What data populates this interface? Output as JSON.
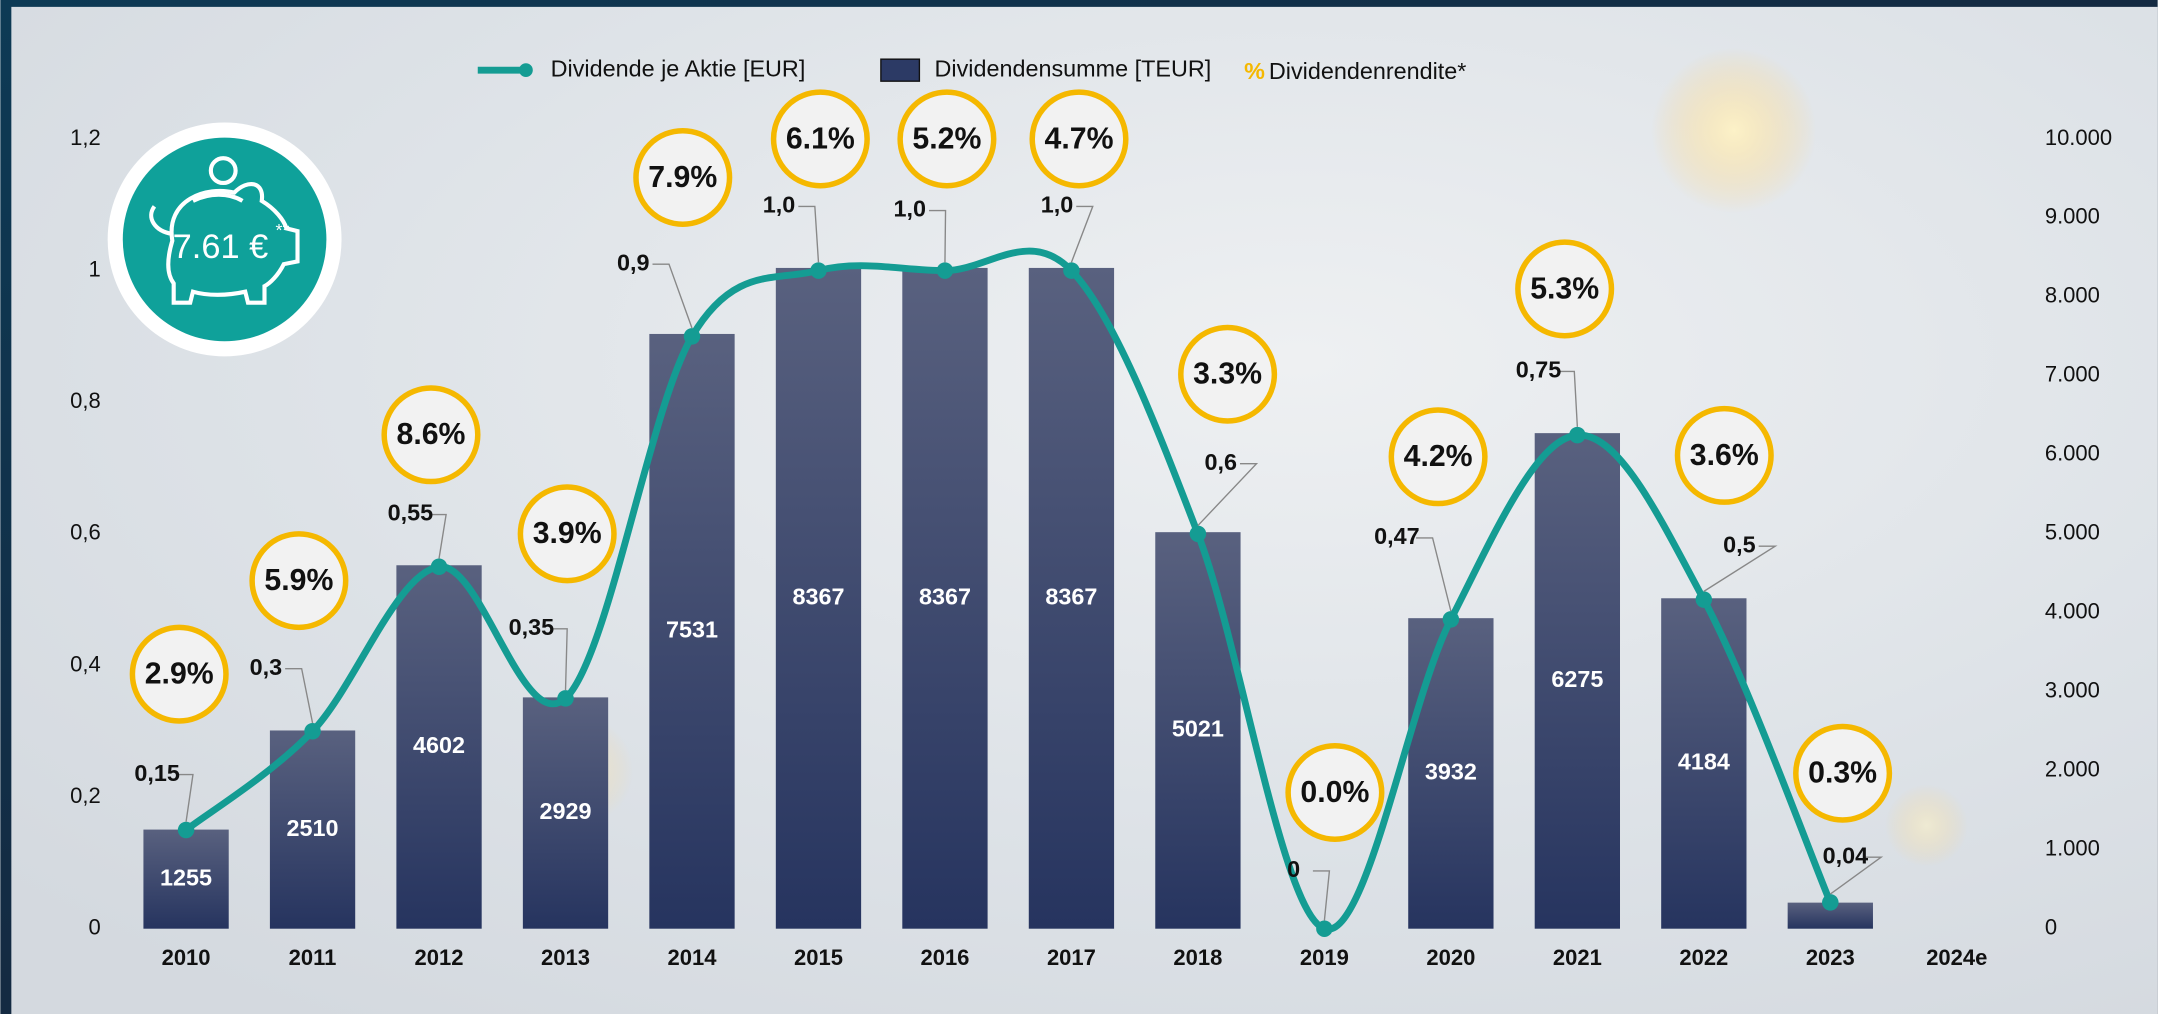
{
  "chart_data": {
    "type": "combo",
    "categories": [
      "2010",
      "2011",
      "2012",
      "2013",
      "2014",
      "2015",
      "2016",
      "2017",
      "2018",
      "2019",
      "2020",
      "2021",
      "2022",
      "2023",
      "2024e"
    ],
    "series": [
      {
        "name": "Dividende je Aktie [EUR]",
        "type": "line",
        "color": "#149c93",
        "values": [
          0.15,
          0.3,
          0.55,
          0.35,
          0.9,
          1.0,
          1.0,
          1.0,
          0.6,
          0,
          0.47,
          0.75,
          0.5,
          0.04,
          null
        ],
        "value_labels": [
          "0,15",
          "0,3",
          "0,55",
          "0,35",
          "0,9",
          "1,0",
          "1,0",
          "1,0",
          "0,6",
          "0",
          "0,47",
          "0,75",
          "0,5",
          "0,04",
          null
        ]
      },
      {
        "name": "Dividendensumme [TEUR]",
        "type": "bar",
        "axis": "y2",
        "color": "#2c3a65",
        "values": [
          1255,
          2510,
          4602,
          2929,
          7531,
          8367,
          8367,
          8367,
          5021,
          0,
          3932,
          6275,
          4184,
          330,
          null
        ]
      },
      {
        "name": "Dividendenrendite*",
        "type": "badge",
        "legend_symbol": "%",
        "color": "#f5b800",
        "values": [
          2.9,
          5.9,
          8.6,
          3.9,
          7.9,
          6.1,
          5.2,
          4.7,
          3.3,
          0.0,
          4.2,
          5.3,
          3.6,
          0.3,
          null
        ],
        "value_labels": [
          "2.9%",
          "5.9%",
          "8.6%",
          "3.9%",
          "7.9%",
          "6.1%",
          "5.2%",
          "4.7%",
          "3.3%",
          "0.0%",
          "4.2%",
          "5.3%",
          "3.6%",
          "0.3%",
          null
        ]
      }
    ],
    "ylim": [
      0,
      1.2
    ],
    "yticks": [
      0,
      {
        "value": 0.2,
        "label": "0,2"
      },
      {
        "value": 0.4,
        "label": "0,4"
      },
      {
        "value": 0.6,
        "label": "0,6"
      },
      {
        "value": 0.8,
        "label": "0,8"
      },
      1,
      {
        "value": 1.2,
        "label": "1,2"
      }
    ],
    "y2lim": [
      0,
      10000
    ],
    "y2ticks": [
      0,
      {
        "value": 1000,
        "label": "1.000"
      },
      {
        "value": 2000,
        "label": "2.000"
      },
      {
        "value": 3000,
        "label": "3.000"
      },
      {
        "value": 4000,
        "label": "4.000"
      },
      {
        "value": 5000,
        "label": "5.000"
      },
      {
        "value": 6000,
        "label": "6.000"
      },
      {
        "value": 7000,
        "label": "7.000"
      },
      {
        "value": 8000,
        "label": "8.000"
      },
      {
        "value": 9000,
        "label": "9.000"
      },
      {
        "value": 10000,
        "label": "10.000"
      }
    ],
    "grid": false,
    "legend": "top",
    "badge": {
      "text": "7.61 €",
      "superscript": "**"
    }
  }
}
